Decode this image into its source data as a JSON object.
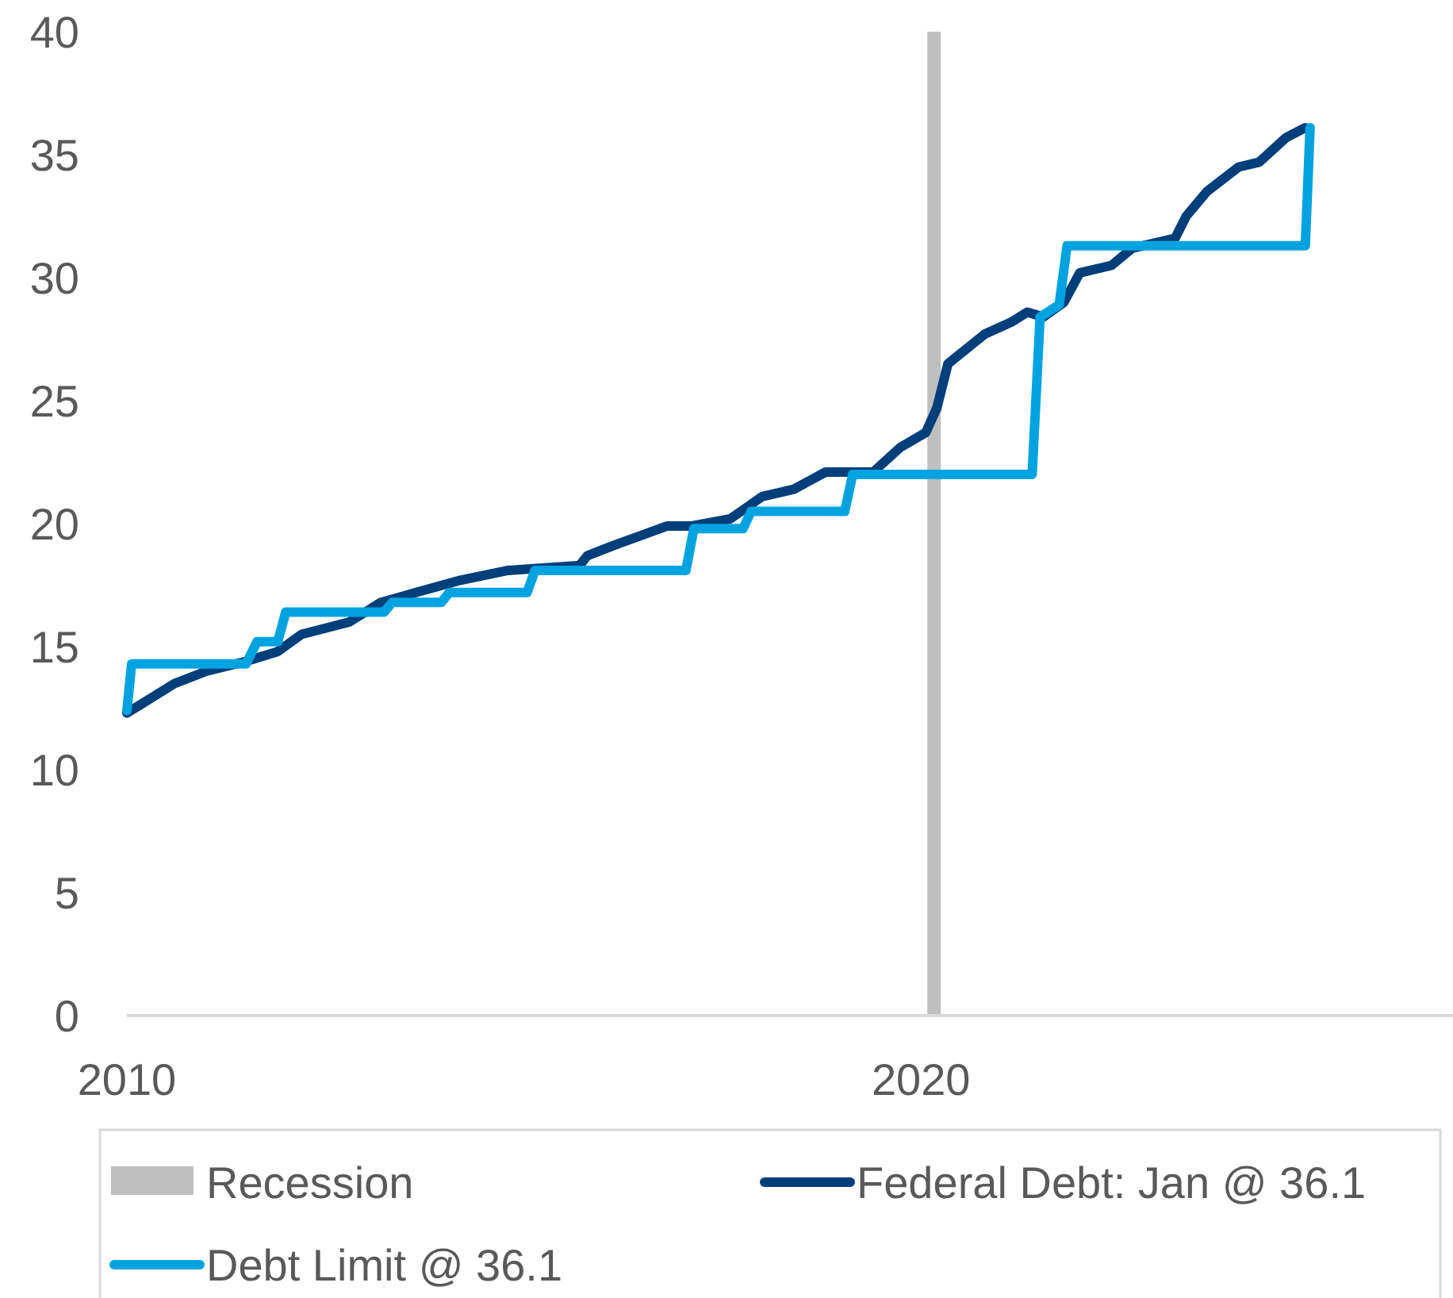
{
  "chart_data": {
    "type": "line",
    "xlim": [
      2010,
      2026.7
    ],
    "xticks": [
      2010,
      2020
    ],
    "ylim": [
      0,
      40
    ],
    "yticks": [
      0,
      5,
      10,
      15,
      20,
      25,
      30,
      35,
      40
    ],
    "grid": false,
    "legend": "bottom",
    "line_style": "solid",
    "bands": [
      {
        "axis": "x",
        "from": 2020.08,
        "to": 2020.25,
        "label": "Recession",
        "color": "#bfbfbf"
      }
    ],
    "series": [
      {
        "name": "Federal Debt: Jan @ 36.1",
        "color": "#003f7a",
        "x": [
          2010.0,
          2010.2,
          2010.6,
          2011.0,
          2011.5,
          2011.9,
          2012.2,
          2012.8,
          2013.2,
          2013.64,
          2014.2,
          2014.8,
          2015.7,
          2015.8,
          2016.2,
          2016.8,
          2017.1,
          2017.6,
          2018.0,
          2018.4,
          2018.8,
          2019.14,
          2019.4,
          2019.74,
          2020.06,
          2020.2,
          2020.34,
          2020.8,
          2021.14,
          2021.34,
          2021.54,
          2021.8,
          2022.0,
          2022.4,
          2022.66,
          2023.2,
          2023.34,
          2023.6,
          2024.0,
          2024.26,
          2024.6,
          2024.84
        ],
        "values": [
          12.3,
          12.7,
          13.5,
          14.0,
          14.4,
          14.8,
          15.5,
          16.0,
          16.8,
          17.2,
          17.7,
          18.1,
          18.3,
          18.7,
          19.2,
          19.9,
          19.9,
          20.2,
          21.1,
          21.4,
          22.1,
          22.1,
          22.1,
          23.1,
          23.7,
          24.7,
          26.5,
          27.7,
          28.2,
          28.6,
          28.4,
          29.0,
          30.2,
          30.5,
          31.2,
          31.6,
          32.5,
          33.5,
          34.5,
          34.7,
          35.7,
          36.1
        ]
      },
      {
        "name": "Debt Limit @ 36.1",
        "color": "#00a3e0",
        "x": [
          2010.0,
          2010.06,
          2011.5,
          2011.64,
          2011.9,
          2012.0,
          2013.24,
          2013.34,
          2013.96,
          2014.06,
          2015.04,
          2015.14,
          2017.04,
          2017.14,
          2017.76,
          2017.86,
          2019.04,
          2019.14,
          2021.4,
          2021.5,
          2021.74,
          2021.84,
          2024.84,
          2024.9
        ],
        "values": [
          12.4,
          14.3,
          14.3,
          15.2,
          15.2,
          16.4,
          16.4,
          16.8,
          16.8,
          17.2,
          17.2,
          18.1,
          18.1,
          19.8,
          19.8,
          20.5,
          20.5,
          22.0,
          22.0,
          28.4,
          28.9,
          31.3,
          31.3,
          36.1
        ]
      }
    ]
  }
}
